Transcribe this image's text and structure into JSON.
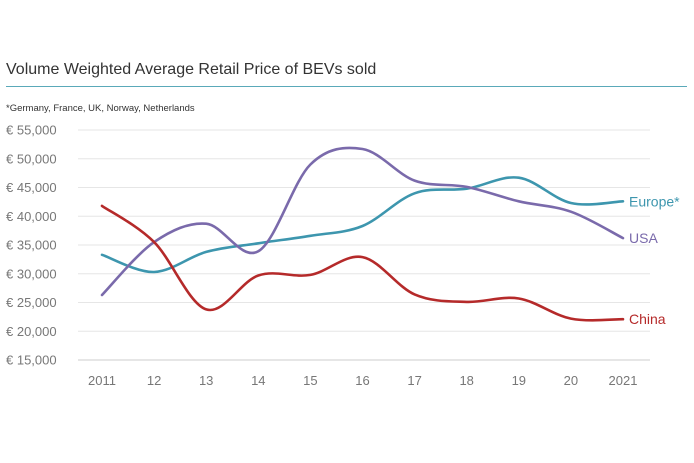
{
  "chart_data": {
    "type": "line",
    "title": "Volume Weighted Average Retail Price of BEVs sold",
    "subtitle": "*Germany, France, UK, Norway, Netherlands",
    "x": [
      "2011",
      "12",
      "13",
      "14",
      "15",
      "16",
      "17",
      "18",
      "19",
      "20",
      "2021"
    ],
    "y_ticks": [
      "€ 15,000",
      "€ 20,000",
      "€ 25,000",
      "€ 30,000",
      "€ 35,000",
      "€ 40,000",
      "€ 45,000",
      "€ 50,000",
      "€ 55,000"
    ],
    "ylim": [
      15000,
      55000
    ],
    "grid": true,
    "series": [
      {
        "name": "Europe*",
        "color": "#3d96ae",
        "values": [
          33300,
          30300,
          33800,
          35300,
          36600,
          38300,
          44000,
          44800,
          46700,
          42300,
          42600
        ]
      },
      {
        "name": "USA",
        "color": "#7a6aab",
        "values": [
          26300,
          35500,
          38700,
          33900,
          49000,
          51700,
          46200,
          45100,
          42600,
          40800,
          36200
        ]
      },
      {
        "name": "China",
        "color": "#b52a2a",
        "values": [
          41800,
          35500,
          23800,
          29700,
          29800,
          32900,
          26400,
          25100,
          25700,
          22200,
          22100
        ]
      }
    ]
  }
}
